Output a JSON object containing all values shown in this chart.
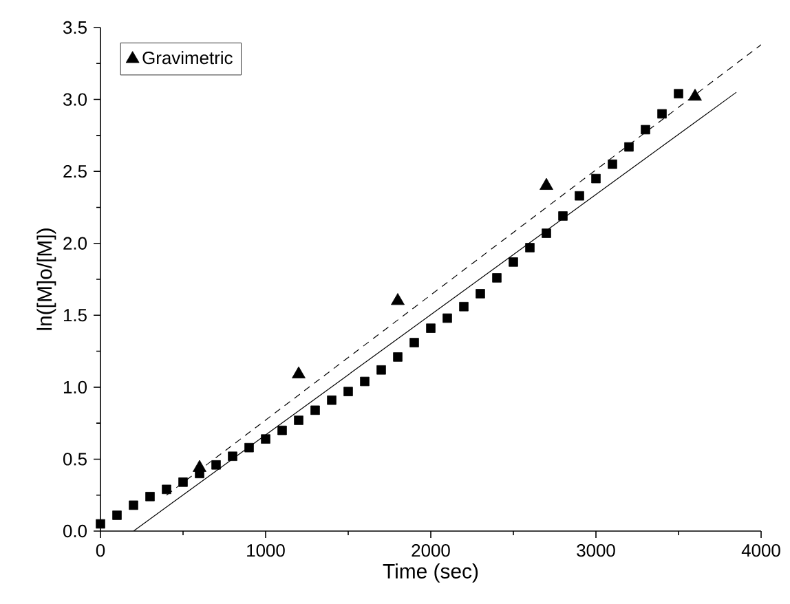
{
  "chart_data": {
    "type": "scatter",
    "xlabel": "Time (sec)",
    "ylabel": "ln([M]o/[M])",
    "xlim": [
      0,
      4000
    ],
    "xticks": [
      0,
      1000,
      2000,
      3000,
      4000
    ],
    "ylim": [
      0,
      3.5
    ],
    "yticks": [
      {
        "value": 0,
        "label": "0.0"
      },
      {
        "value": 0.5,
        "label": "0.5"
      },
      {
        "value": 1,
        "label": "1.0"
      },
      {
        "value": 1.5,
        "label": "1.5"
      },
      {
        "value": 2,
        "label": "2.0"
      },
      {
        "value": 2.5,
        "label": "2.5"
      },
      {
        "value": 3,
        "label": "3.0"
      },
      {
        "value": 3.5,
        "label": "3.5"
      }
    ],
    "grid": false,
    "legend": "top left",
    "series": [
      {
        "marker": "square",
        "color": "#000000",
        "x": [
          0,
          100,
          200,
          300,
          400,
          500,
          600,
          700,
          800,
          900,
          1000,
          1100,
          1200,
          1300,
          1400,
          1500,
          1600,
          1700,
          1800,
          1900,
          2000,
          2100,
          2200,
          2300,
          2400,
          2500,
          2600,
          2700,
          2800,
          2900,
          3000,
          3100,
          3200,
          3300,
          3400,
          3500
        ],
        "values": [
          0.05,
          0.11,
          0.18,
          0.24,
          0.29,
          0.34,
          0.4,
          0.46,
          0.52,
          0.58,
          0.64,
          0.7,
          0.77,
          0.84,
          0.91,
          0.97,
          1.04,
          1.12,
          1.21,
          1.31,
          1.41,
          1.48,
          1.56,
          1.65,
          1.76,
          1.87,
          1.97,
          2.07,
          2.19,
          2.33,
          2.45,
          2.55,
          2.67,
          2.79,
          2.9,
          3.04
        ]
      },
      {
        "name": "Gravimetric",
        "marker": "triangle",
        "color": "#000000",
        "x": [
          600,
          1200,
          1800,
          2700,
          3600
        ],
        "values": [
          0.44,
          1.09,
          1.6,
          2.4,
          3.02
        ]
      },
      {
        "type": "line",
        "marker": "none",
        "line_style": "dashed",
        "color": "#000000",
        "x": [
          400,
          4000
        ],
        "values": [
          0.25,
          3.38
        ]
      },
      {
        "type": "line",
        "marker": "none",
        "line_style": "solid",
        "color": "#000000",
        "x": [
          200,
          3850
        ],
        "values": [
          0,
          3.05
        ]
      }
    ]
  }
}
